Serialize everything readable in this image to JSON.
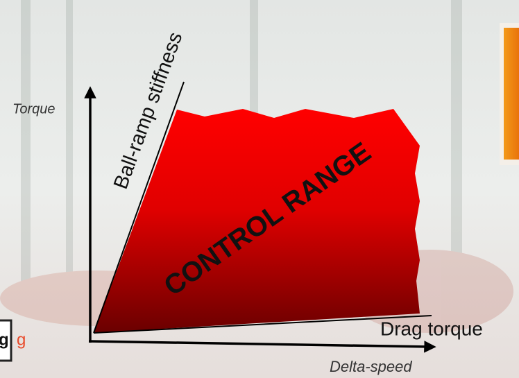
{
  "diagram": {
    "y_axis_label": "Torque",
    "x_axis_label": "Delta-speed",
    "upper_boundary_label": "Ball-ramp stiffness",
    "region_label": "CONTROL RANGE",
    "lower_boundary_label": "Drag torque"
  },
  "fragments": [
    "g",
    "g"
  ]
}
